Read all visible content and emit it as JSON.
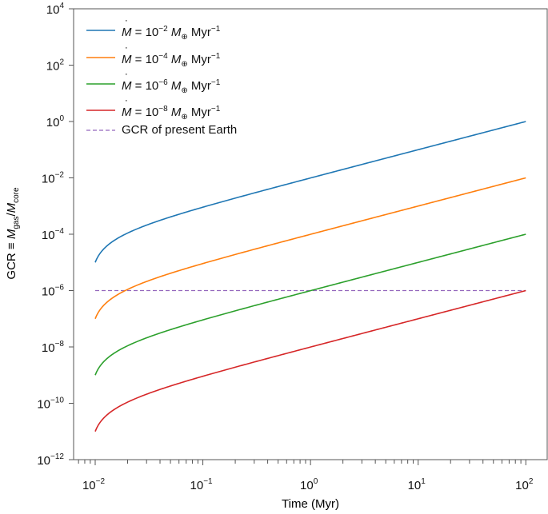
{
  "chart_data": {
    "type": "line",
    "xlabel": "Time (Myr)",
    "ylabel": {
      "prefix": "GCR ≡ ",
      "num": "M",
      "num_sub": "gas",
      "den": "M",
      "den_sub": "core"
    },
    "xscale": "log",
    "yscale": "log",
    "xlim": [
      0.0063,
      158
    ],
    "ylim": [
      1e-12,
      10000.0
    ],
    "x_ticks": [
      {
        "base": "10",
        "exp": "−2",
        "v": 0.01
      },
      {
        "base": "10",
        "exp": "−1",
        "v": 0.1
      },
      {
        "base": "10",
        "exp": "0",
        "v": 1
      },
      {
        "base": "10",
        "exp": "1",
        "v": 10
      },
      {
        "base": "10",
        "exp": "2",
        "v": 100
      }
    ],
    "y_ticks": [
      {
        "base": "10",
        "exp": "4",
        "v": 4
      },
      {
        "base": "10",
        "exp": "2",
        "v": 2
      },
      {
        "base": "10",
        "exp": "0",
        "v": 0
      },
      {
        "base": "10",
        "exp": "−2",
        "v": -2
      },
      {
        "base": "10",
        "exp": "−4",
        "v": -4
      },
      {
        "base": "10",
        "exp": "−6",
        "v": -6
      },
      {
        "base": "10",
        "exp": "−8",
        "v": -8
      },
      {
        "base": "10",
        "exp": "−10",
        "v": -10
      },
      {
        "base": "10",
        "exp": "−12",
        "v": -12
      }
    ],
    "model": {
      "t_start": 0.01,
      "t_end": 100,
      "t_offset": 0.009
    },
    "series": [
      {
        "name": "Mdot = 1e-2 M_earth/Myr",
        "mdot": 0.01,
        "exp": "−2",
        "color": "#1f77b4"
      },
      {
        "name": "Mdot = 1e-4 M_earth/Myr",
        "mdot": 0.0001,
        "exp": "−4",
        "color": "#ff7f0e"
      },
      {
        "name": "Mdot = 1e-6 M_earth/Myr",
        "mdot": 1e-06,
        "exp": "−6",
        "color": "#2ca02c"
      },
      {
        "name": "Mdot = 1e-8 M_earth/Myr",
        "mdot": 1e-08,
        "exp": "−8",
        "color": "#d62728"
      }
    ],
    "legend_parts": {
      "m": "M",
      "eq": " = 10",
      "earth": "⊕",
      "unit": " Myr",
      "unit_exp": "−1"
    },
    "reference": {
      "label": "GCR of present Earth",
      "value": 1e-06,
      "x_range": [
        0.01,
        100
      ],
      "color": "#9467bd",
      "style": "dashed"
    },
    "legend_placement": "top-left",
    "grid": false
  }
}
